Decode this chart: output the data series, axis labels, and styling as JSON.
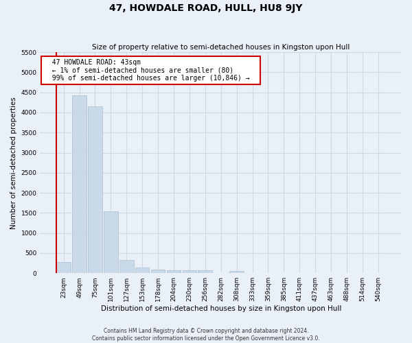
{
  "title": "47, HOWDALE ROAD, HULL, HU8 9JY",
  "subtitle": "Size of property relative to semi-detached houses in Kingston upon Hull",
  "xlabel": "Distribution of semi-detached houses by size in Kingston upon Hull",
  "ylabel": "Number of semi-detached properties",
  "footer1": "Contains HM Land Registry data © Crown copyright and database right 2024.",
  "footer2": "Contains public sector information licensed under the Open Government Licence v3.0.",
  "annotation_title": "47 HOWDALE ROAD: 43sqm",
  "annotation_line1": "← 1% of semi-detached houses are smaller (80)",
  "annotation_line2": "99% of semi-detached houses are larger (10,846) →",
  "bar_labels": [
    "23sqm",
    "49sqm",
    "75sqm",
    "101sqm",
    "127sqm",
    "153sqm",
    "178sqm",
    "204sqm",
    "230sqm",
    "256sqm",
    "282sqm",
    "308sqm",
    "333sqm",
    "359sqm",
    "385sqm",
    "411sqm",
    "437sqm",
    "463sqm",
    "488sqm",
    "514sqm",
    "540sqm"
  ],
  "bar_values": [
    280,
    4430,
    4150,
    1540,
    320,
    140,
    90,
    75,
    70,
    65,
    0,
    60,
    0,
    0,
    0,
    0,
    0,
    0,
    0,
    0,
    0
  ],
  "bar_color": "#c9d9e8",
  "bar_edge_color": "#aabdd0",
  "annotation_box_color": "#ffffff",
  "annotation_box_edge": "#cc0000",
  "subject_line_color": "#cc0000",
  "grid_color": "#d0d8e4",
  "bg_color": "#eaf0f8",
  "ylim": [
    0,
    5500
  ],
  "yticks": [
    0,
    500,
    1000,
    1500,
    2000,
    2500,
    3000,
    3500,
    4000,
    4500,
    5000,
    5500
  ]
}
